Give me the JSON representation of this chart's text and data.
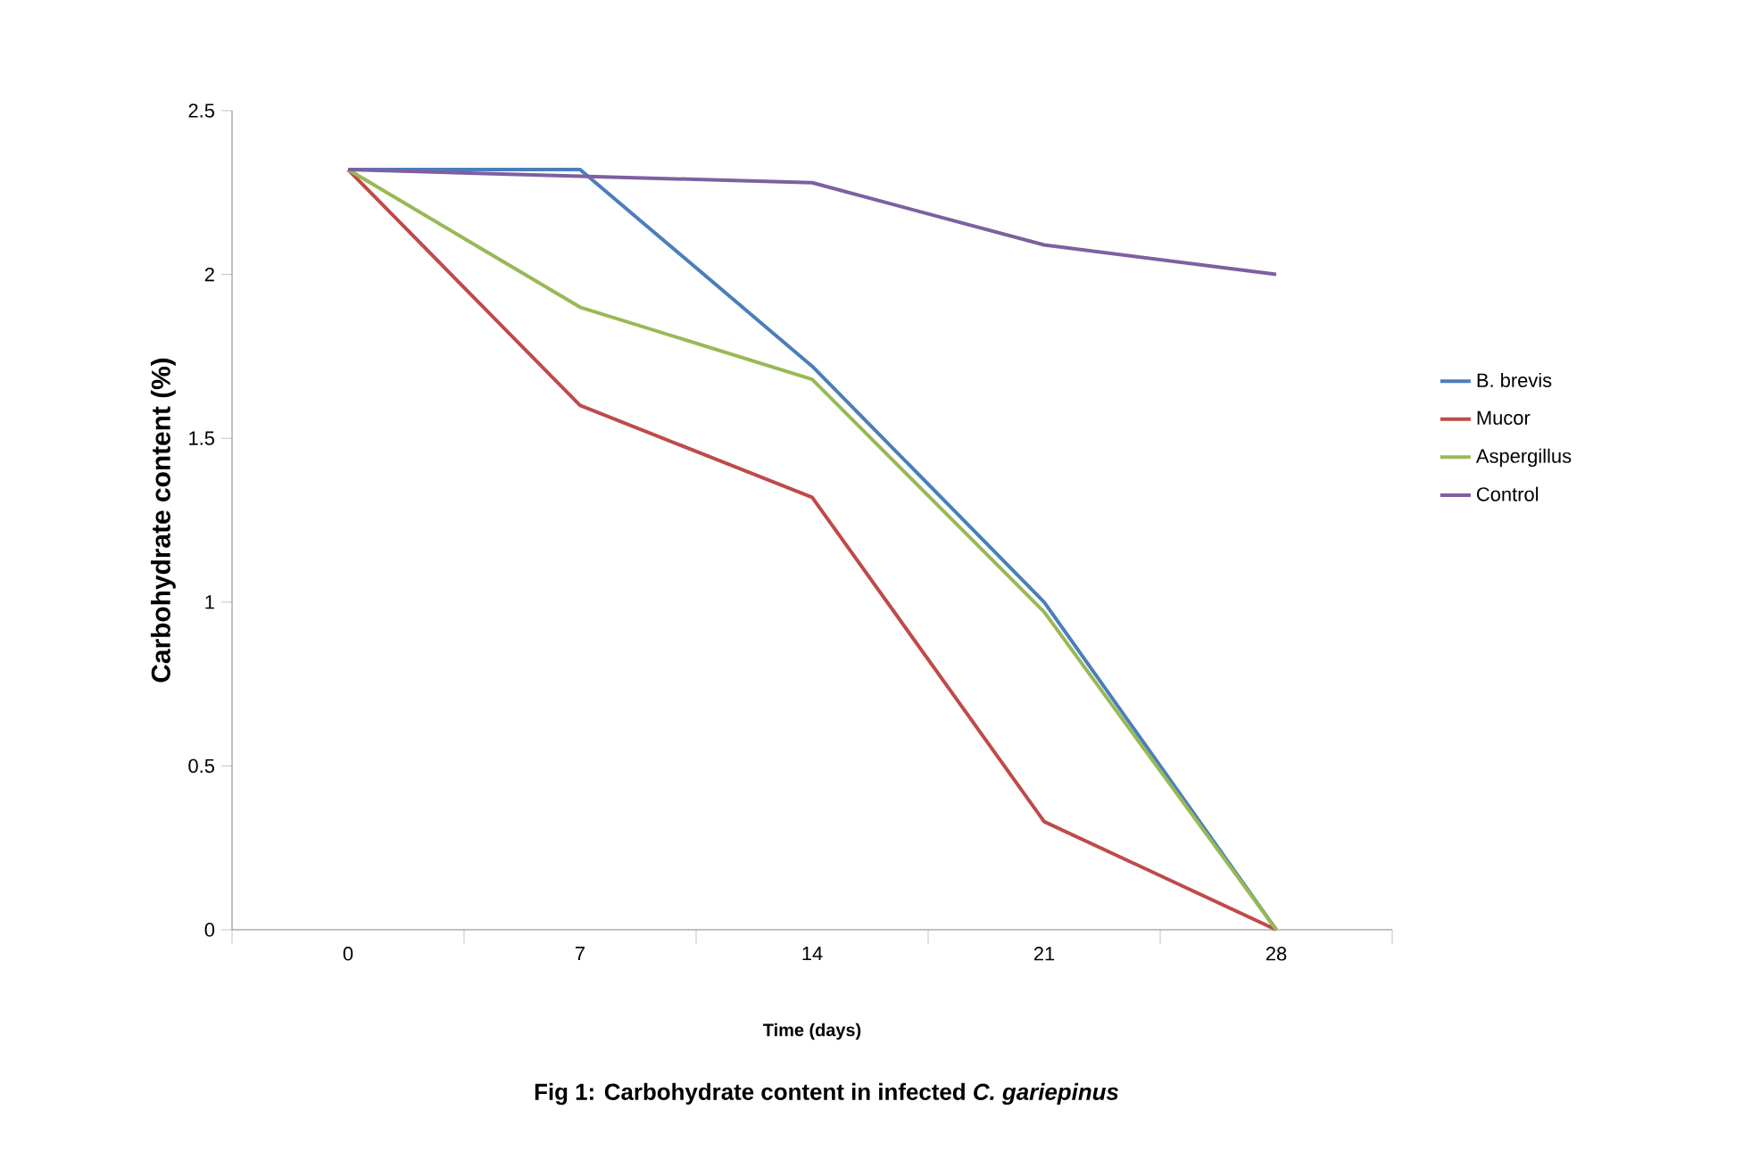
{
  "chart_data": {
    "type": "line",
    "title": "Fig 1: Carbohydrate content in infected *C. gariepinus*",
    "xlabel": "Time  (days)",
    "ylabel": "Carbohydrate content (%)",
    "categories": [
      "0",
      "7",
      "14",
      "21",
      "28"
    ],
    "ylim": [
      0,
      2.5
    ],
    "yticks": [
      0,
      0.5,
      1,
      1.5,
      2,
      2.5
    ],
    "legend": "right",
    "marker": "none",
    "line_style": "solid",
    "series": [
      {
        "name": "B. brevis",
        "color": "#4a7ebb",
        "values": [
          2.32,
          2.32,
          1.72,
          1.0,
          0
        ]
      },
      {
        "name": "Mucor",
        "color": "#be4b48",
        "values": [
          2.32,
          1.6,
          1.32,
          0.33,
          0
        ]
      },
      {
        "name": "Aspergillus",
        "color": "#98b954",
        "values": [
          2.32,
          1.9,
          1.68,
          0.97,
          0
        ]
      },
      {
        "name": "Control",
        "color": "#7d60a0",
        "values": [
          2.32,
          2.3,
          2.28,
          2.09,
          2.0
        ]
      }
    ]
  }
}
